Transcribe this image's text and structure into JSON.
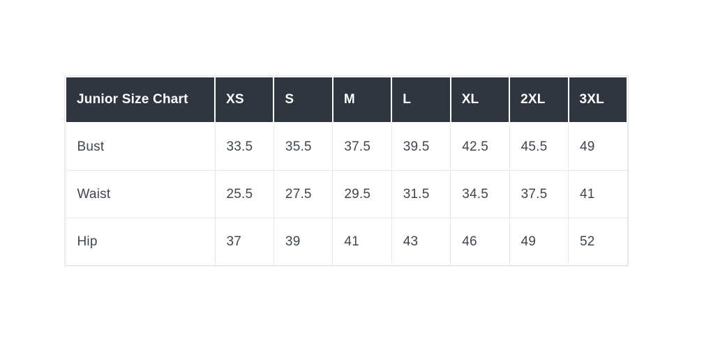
{
  "page": {
    "background": "#ffffff"
  },
  "table": {
    "header": {
      "label": "Junior Size Chart",
      "sizes": [
        "XS",
        "S",
        "M",
        "L",
        "XL",
        "2XL",
        "3XL"
      ]
    },
    "rows": [
      {
        "label": "Bust",
        "values": [
          "33.5",
          "35.5",
          "37.5",
          "39.5",
          "42.5",
          "45.5",
          "49"
        ]
      },
      {
        "label": "Waist",
        "values": [
          "25.5",
          "27.5",
          "29.5",
          "31.5",
          "34.5",
          "37.5",
          "41"
        ]
      },
      {
        "label": "Hip",
        "values": [
          "37",
          "39",
          "41",
          "43",
          "46",
          "49",
          "52"
        ]
      }
    ],
    "colors": {
      "header_bg": "#30363f",
      "header_text": "#ffffff",
      "body_text": "#3f454d",
      "border": "#e5e7e9",
      "body_bg": "#ffffff"
    }
  },
  "chart_data": {
    "type": "table",
    "title": "Junior Size Chart",
    "categories": [
      "XS",
      "S",
      "M",
      "L",
      "XL",
      "2XL",
      "3XL"
    ],
    "series": [
      {
        "name": "Bust",
        "values": [
          33.5,
          35.5,
          37.5,
          39.5,
          42.5,
          45.5,
          49
        ]
      },
      {
        "name": "Waist",
        "values": [
          25.5,
          27.5,
          29.5,
          31.5,
          34.5,
          37.5,
          41
        ]
      },
      {
        "name": "Hip",
        "values": [
          37,
          39,
          41,
          43,
          46,
          49,
          52
        ]
      }
    ],
    "layout": {
      "legend": "none",
      "grid": "cell-borders",
      "header_style": "dark-row",
      "units": "inches (implied, not shown)"
    }
  }
}
